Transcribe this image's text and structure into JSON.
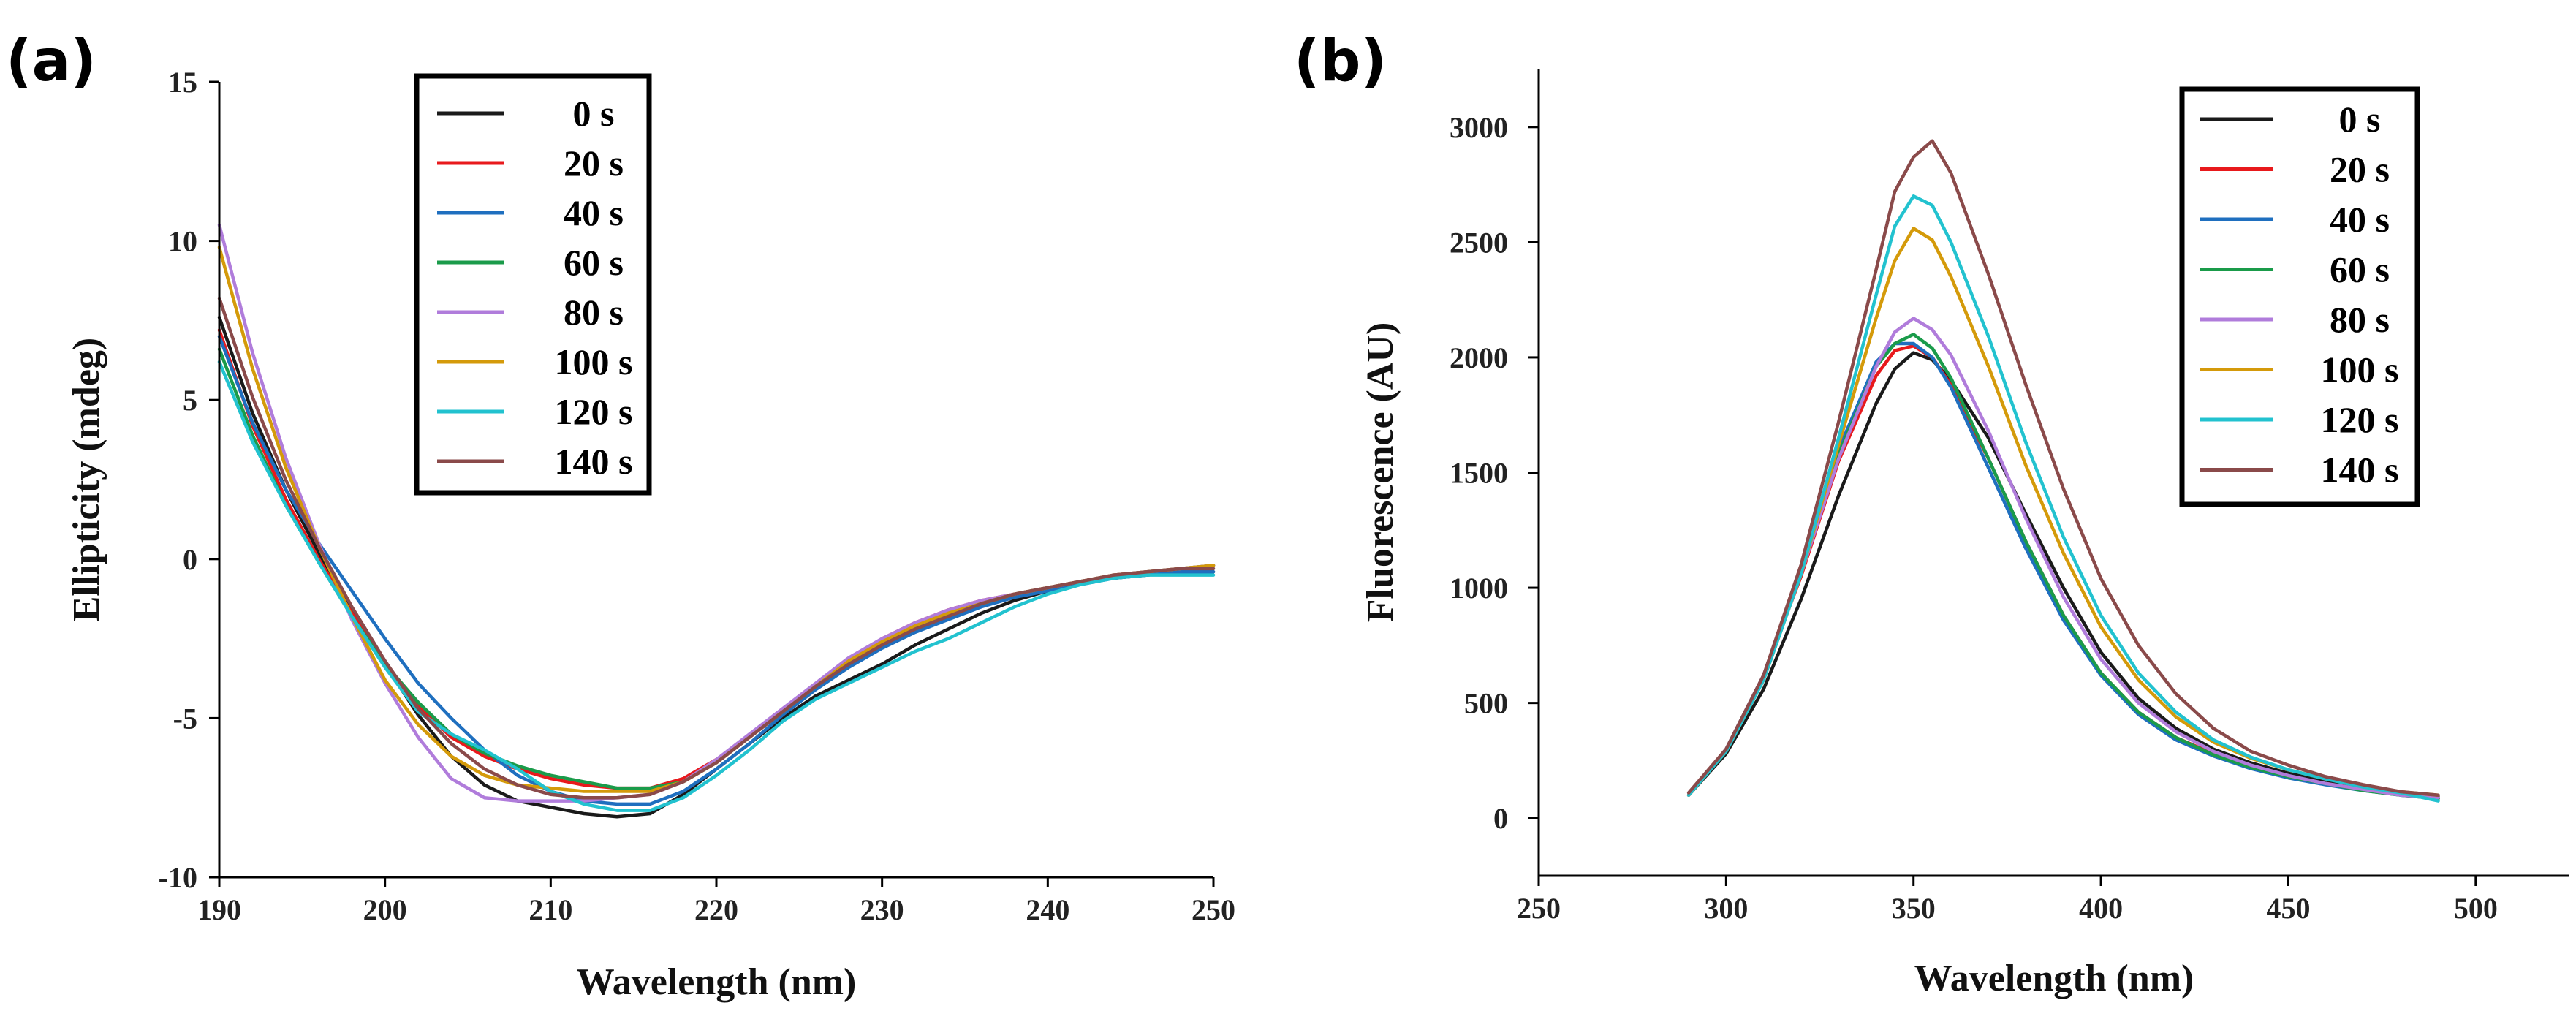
{
  "colors": {
    "0 s": "#1a1a1a",
    "20 s": "#e8191c",
    "40 s": "#1f6fbf",
    "60 s": "#1a9b4a",
    "80 s": "#b07cdb",
    "100 s": "#d49a0a",
    "120 s": "#22c2cf",
    "140 s": "#8a4a4a"
  },
  "chart_data": [
    {
      "panel_label": "(a)",
      "type": "line",
      "title": "",
      "xlabel": "Wavelength (nm)",
      "ylabel": "Ellipticity (mdeg)",
      "xlim": [
        190,
        250
      ],
      "ylim": [
        -10,
        15
      ],
      "xticks": [
        190,
        200,
        210,
        220,
        230,
        240,
        250
      ],
      "yticks": [
        -10,
        -5,
        0,
        5,
        10,
        15
      ],
      "xtick_labels": [
        "190",
        "200",
        "210",
        "220",
        "230",
        "240",
        "250"
      ],
      "ytick_labels": [
        "-10",
        "-5",
        "0",
        "5",
        "10",
        "15"
      ],
      "legend": [
        "0 s",
        "20 s",
        "40 s",
        "60 s",
        "80 s",
        "100 s",
        "120 s",
        "140 s"
      ],
      "legend_position": "top-center",
      "x": [
        190,
        192,
        194,
        196,
        198,
        200,
        202,
        204,
        206,
        208,
        210,
        212,
        214,
        216,
        218,
        220,
        222,
        224,
        226,
        228,
        230,
        232,
        234,
        236,
        238,
        240,
        242,
        244,
        246,
        248,
        250
      ],
      "series": [
        {
          "name": "0 s",
          "values": [
            7.6,
            4.6,
            2.2,
            0.2,
            -1.6,
            -3.3,
            -4.9,
            -6.2,
            -7.1,
            -7.6,
            -7.8,
            -8.0,
            -8.1,
            -8.0,
            -7.4,
            -6.6,
            -5.8,
            -5.0,
            -4.3,
            -3.8,
            -3.3,
            -2.7,
            -2.2,
            -1.7,
            -1.3,
            -1.0,
            -0.7,
            -0.6,
            -0.5,
            -0.4,
            -0.4
          ]
        },
        {
          "name": "20 s",
          "values": [
            7.2,
            4.2,
            1.9,
            0.0,
            -1.7,
            -3.3,
            -4.6,
            -5.6,
            -6.2,
            -6.6,
            -6.9,
            -7.1,
            -7.2,
            -7.2,
            -6.9,
            -6.3,
            -5.6,
            -4.8,
            -4.0,
            -3.2,
            -2.5,
            -2.0,
            -1.6,
            -1.3,
            -1.1,
            -0.9,
            -0.7,
            -0.5,
            -0.4,
            -0.3,
            -0.2
          ]
        },
        {
          "name": "40 s",
          "values": [
            7.0,
            4.3,
            2.2,
            0.5,
            -1.0,
            -2.5,
            -3.9,
            -5.0,
            -6.0,
            -6.8,
            -7.3,
            -7.6,
            -7.7,
            -7.7,
            -7.3,
            -6.6,
            -5.8,
            -4.9,
            -4.1,
            -3.4,
            -2.8,
            -2.3,
            -1.9,
            -1.5,
            -1.2,
            -1.0,
            -0.8,
            -0.6,
            -0.5,
            -0.4,
            -0.4
          ]
        },
        {
          "name": "60 s",
          "values": [
            6.6,
            3.9,
            1.7,
            -0.1,
            -1.8,
            -3.3,
            -4.5,
            -5.5,
            -6.1,
            -6.5,
            -6.8,
            -7.0,
            -7.2,
            -7.2,
            -7.0,
            -6.4,
            -5.6,
            -4.8,
            -4.0,
            -3.2,
            -2.6,
            -2.1,
            -1.7,
            -1.4,
            -1.1,
            -0.9,
            -0.7,
            -0.5,
            -0.4,
            -0.3,
            -0.2
          ]
        },
        {
          "name": "80 s",
          "values": [
            10.5,
            6.5,
            3.2,
            0.5,
            -1.9,
            -3.9,
            -5.6,
            -6.9,
            -7.5,
            -7.6,
            -7.6,
            -7.6,
            -7.5,
            -7.4,
            -7.0,
            -6.3,
            -5.5,
            -4.7,
            -3.9,
            -3.1,
            -2.5,
            -2.0,
            -1.6,
            -1.3,
            -1.1,
            -0.9,
            -0.7,
            -0.5,
            -0.4,
            -0.3,
            -0.2
          ]
        },
        {
          "name": "100 s",
          "values": [
            9.8,
            6.0,
            2.9,
            0.4,
            -1.8,
            -3.8,
            -5.2,
            -6.2,
            -6.8,
            -7.1,
            -7.2,
            -7.3,
            -7.3,
            -7.3,
            -7.0,
            -6.4,
            -5.6,
            -4.8,
            -4.0,
            -3.2,
            -2.6,
            -2.1,
            -1.7,
            -1.4,
            -1.1,
            -0.9,
            -0.7,
            -0.5,
            -0.4,
            -0.3,
            -0.2
          ]
        },
        {
          "name": "120 s",
          "values": [
            6.2,
            3.7,
            1.7,
            -0.1,
            -1.8,
            -3.4,
            -4.8,
            -5.5,
            -6.0,
            -6.6,
            -7.3,
            -7.7,
            -7.9,
            -7.9,
            -7.5,
            -6.8,
            -6.0,
            -5.1,
            -4.4,
            -3.9,
            -3.4,
            -2.9,
            -2.5,
            -2.0,
            -1.5,
            -1.1,
            -0.8,
            -0.6,
            -0.5,
            -0.5,
            -0.5
          ]
        },
        {
          "name": "140 s",
          "values": [
            8.2,
            5.1,
            2.5,
            0.4,
            -1.5,
            -3.2,
            -4.7,
            -5.8,
            -6.6,
            -7.1,
            -7.4,
            -7.5,
            -7.5,
            -7.4,
            -7.0,
            -6.4,
            -5.6,
            -4.8,
            -4.0,
            -3.3,
            -2.7,
            -2.2,
            -1.8,
            -1.4,
            -1.1,
            -0.9,
            -0.7,
            -0.5,
            -0.4,
            -0.3,
            -0.3
          ]
        }
      ]
    },
    {
      "panel_label": "(b)",
      "type": "line",
      "title": "",
      "xlabel": "Wavelength (nm)",
      "ylabel": "Fluorescence (AU)",
      "xlim": [
        250,
        525
      ],
      "ylim": [
        -250,
        3250
      ],
      "xticks": [
        250,
        300,
        350,
        400,
        450,
        500
      ],
      "yticks": [
        0,
        500,
        1000,
        1500,
        2000,
        2500,
        3000
      ],
      "xtick_labels": [
        "250",
        "300",
        "350",
        "400",
        "450",
        "500"
      ],
      "ytick_labels": [
        "0",
        "500",
        "1000",
        "1500",
        "2000",
        "2500",
        "3000"
      ],
      "legend": [
        "0 s",
        "20 s",
        "40 s",
        "60 s",
        "80 s",
        "100 s",
        "120 s",
        "140 s"
      ],
      "legend_position": "top-right",
      "x": [
        290,
        300,
        310,
        320,
        330,
        340,
        345,
        350,
        355,
        360,
        370,
        380,
        390,
        400,
        410,
        420,
        430,
        440,
        450,
        460,
        470,
        480,
        490
      ],
      "series": [
        {
          "name": "0 s",
          "values": [
            100,
            280,
            560,
            950,
            1400,
            1800,
            1950,
            2020,
            1990,
            1900,
            1650,
            1320,
            1000,
            720,
            520,
            390,
            300,
            240,
            195,
            160,
            130,
            110,
            95
          ]
        },
        {
          "name": "20 s",
          "values": [
            100,
            300,
            620,
            1050,
            1550,
            1920,
            2030,
            2050,
            2000,
            1880,
            1560,
            1200,
            880,
            630,
            460,
            350,
            280,
            220,
            180,
            150,
            125,
            105,
            90
          ]
        },
        {
          "name": "40 s",
          "values": [
            100,
            300,
            620,
            1080,
            1600,
            1980,
            2060,
            2060,
            2000,
            1870,
            1520,
            1170,
            860,
            620,
            450,
            340,
            270,
            215,
            175,
            145,
            120,
            100,
            85
          ]
        },
        {
          "name": "60 s",
          "values": [
            100,
            300,
            620,
            1070,
            1580,
            1960,
            2060,
            2100,
            2040,
            1910,
            1560,
            1200,
            880,
            630,
            460,
            350,
            275,
            220,
            180,
            150,
            120,
            100,
            85
          ]
        },
        {
          "name": "80 s",
          "values": [
            100,
            300,
            620,
            1060,
            1560,
            1960,
            2110,
            2170,
            2120,
            2010,
            1680,
            1300,
            960,
            690,
            500,
            375,
            290,
            230,
            185,
            150,
            125,
            100,
            90
          ]
        },
        {
          "name": "100 s",
          "values": [
            100,
            290,
            600,
            1060,
            1620,
            2170,
            2420,
            2560,
            2510,
            2350,
            1960,
            1530,
            1150,
            830,
            600,
            440,
            330,
            260,
            210,
            170,
            140,
            115,
            100
          ]
        },
        {
          "name": "120 s",
          "values": [
            100,
            290,
            600,
            1060,
            1650,
            2270,
            2570,
            2700,
            2660,
            2500,
            2090,
            1630,
            1220,
            880,
            630,
            460,
            340,
            265,
            210,
            170,
            135,
            110,
            75
          ]
        },
        {
          "name": "140 s",
          "values": [
            110,
            300,
            620,
            1100,
            1720,
            2380,
            2720,
            2870,
            2940,
            2800,
            2360,
            1880,
            1430,
            1040,
            750,
            540,
            390,
            290,
            230,
            180,
            145,
            115,
            100
          ]
        }
      ]
    }
  ]
}
